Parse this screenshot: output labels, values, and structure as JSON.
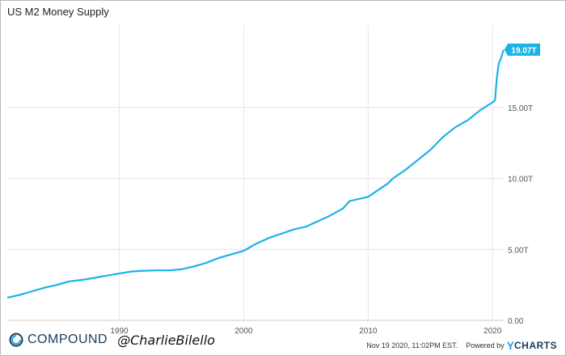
{
  "title": "US M2 Money Supply",
  "chart_data": {
    "type": "line",
    "title": "US M2 Money Supply",
    "xlabel": "",
    "ylabel": "",
    "xlim": [
      1981.0,
      2020.9
    ],
    "ylim": [
      0,
      20.8
    ],
    "x_ticks": [
      {
        "value": 1990,
        "label": "1990"
      },
      {
        "value": 2000,
        "label": "2000"
      },
      {
        "value": 2010,
        "label": "2010"
      },
      {
        "value": 2020,
        "label": "2020"
      }
    ],
    "y_ticks": [
      {
        "value": 0,
        "label": "0.00"
      },
      {
        "value": 5,
        "label": "5.00T"
      },
      {
        "value": 10,
        "label": "10.00T"
      },
      {
        "value": 15,
        "label": "15.00T"
      }
    ],
    "grid": true,
    "unit": "T",
    "series": [
      {
        "color": "#1ab2e8",
        "x": [
          1981.0,
          1982.0,
          1983.0,
          1984.0,
          1985.0,
          1986.0,
          1987.0,
          1988.0,
          1989.0,
          1990.0,
          1991.0,
          1992.0,
          1993.0,
          1994.0,
          1995.0,
          1996.0,
          1997.0,
          1998.0,
          1999.0,
          2000.0,
          2001.0,
          2002.0,
          2003.0,
          2004.0,
          2005.0,
          2006.0,
          2007.0,
          2008.0,
          2008.5,
          2009.0,
          2010.0,
          2011.0,
          2011.6,
          2012.0,
          2013.0,
          2014.0,
          2015.0,
          2016.0,
          2017.0,
          2018.0,
          2019.0,
          2019.9,
          2020.2,
          2020.35,
          2020.5,
          2020.7,
          2020.88
        ],
        "values": [
          1.6,
          1.8,
          2.05,
          2.3,
          2.5,
          2.75,
          2.85,
          3.0,
          3.15,
          3.3,
          3.45,
          3.5,
          3.52,
          3.52,
          3.6,
          3.8,
          4.05,
          4.4,
          4.65,
          4.9,
          5.4,
          5.8,
          6.1,
          6.4,
          6.6,
          7.0,
          7.4,
          7.9,
          8.4,
          8.5,
          8.7,
          9.3,
          9.65,
          10.0,
          10.6,
          11.3,
          12.0,
          12.9,
          13.6,
          14.1,
          14.8,
          15.3,
          15.5,
          17.1,
          18.1,
          18.5,
          19.07
        ]
      }
    ],
    "last_value_label": "19.07T"
  },
  "footer": {
    "brand_name": "COMPOUND",
    "handle": "@CharlieBilello",
    "source_date": "Nov 19 2020, 11:02PM EST.",
    "powered_by": "Powered by",
    "ycharts_y": "Y",
    "ycharts_rest": "CHARTS"
  },
  "colors": {
    "line": "#1ab2e8",
    "grid": "#e6e6e6",
    "brand_dark": "#1a3d5c",
    "brand_accent": "#19a7e0"
  }
}
